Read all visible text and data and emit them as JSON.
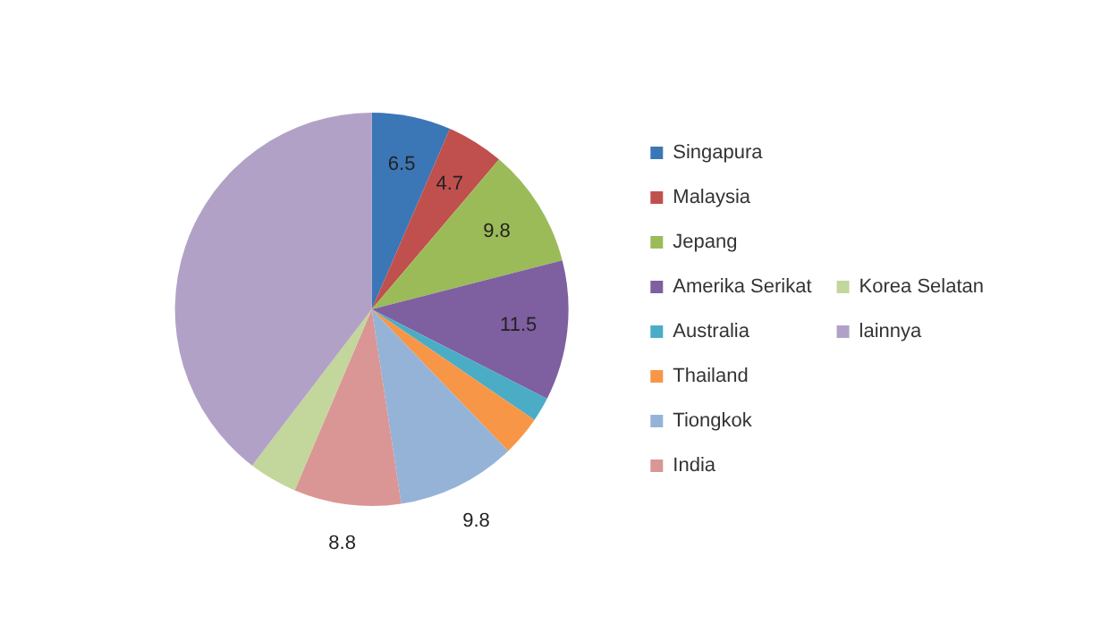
{
  "chart_data": {
    "type": "pie",
    "categories": [
      "Singapura",
      "Malaysia",
      "Jepang",
      "Amerika Serikat",
      "Australia",
      "Thailand",
      "Tiongkok",
      "India",
      "Korea Selatan",
      "lainnya"
    ],
    "values": [
      6.5,
      4.7,
      9.8,
      11.5,
      2,
      3.3,
      9.8,
      8.8,
      4,
      39.6
    ],
    "value_labels": [
      "6.5",
      "4.7",
      "9.8",
      "11.5",
      null,
      null,
      "9.8",
      "8.8",
      null,
      null
    ],
    "colors": [
      "#3b76b6",
      "#c0504d",
      "#9bbb59",
      "#7e5fa0",
      "#4bacc6",
      "#f79646",
      "#95b3d7",
      "#d99694",
      "#c3d69b",
      "#b2a1c7"
    ],
    "legend": "right"
  }
}
